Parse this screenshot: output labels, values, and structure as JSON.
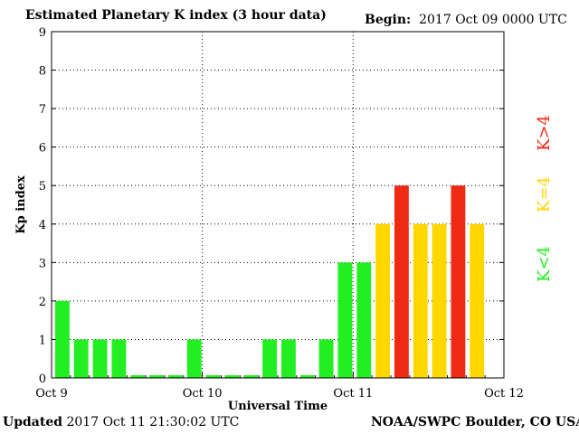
{
  "header": {
    "title": "Estimated Planetary K index (3 hour data)",
    "begin_label": "Begin:",
    "begin_value": "2017 Oct 09 0000 UTC"
  },
  "footer": {
    "updated_label": "Updated",
    "updated_value": "2017 Oct 11 21:30:02 UTC",
    "credit": "NOAA/SWPC Boulder, CO USA"
  },
  "colors": {
    "low": "#22ee22",
    "storm_threshold": "#ffd700",
    "high": "#ee2a15",
    "grid": "#000000",
    "axes": "#000000"
  },
  "legend": [
    {
      "label": "K>4",
      "color": "#ee2a15"
    },
    {
      "label": "K=4",
      "color": "#ffd700"
    },
    {
      "label": "K<4",
      "color": "#22ee22"
    }
  ],
  "chart_data": {
    "type": "bar",
    "title": "Estimated Planetary K index (3 hour data)",
    "xlabel": "Universal Time",
    "ylabel": "Kp index",
    "ylim": [
      0,
      9
    ],
    "yticks": [
      "0",
      "1",
      "2",
      "3",
      "4",
      "5",
      "6",
      "7",
      "8",
      "9"
    ],
    "xticks": [
      "Oct 9",
      "Oct 10",
      "Oct 11",
      "Oct 12"
    ],
    "x_unit": "3-hour interval",
    "intervals_per_day": 8,
    "values": [
      2,
      1,
      1,
      1,
      0,
      0,
      0,
      1,
      0,
      0,
      0,
      1,
      1,
      0,
      1,
      3,
      3,
      4,
      5,
      4,
      4,
      5,
      4
    ],
    "grid": true,
    "legend_placement": "right"
  }
}
